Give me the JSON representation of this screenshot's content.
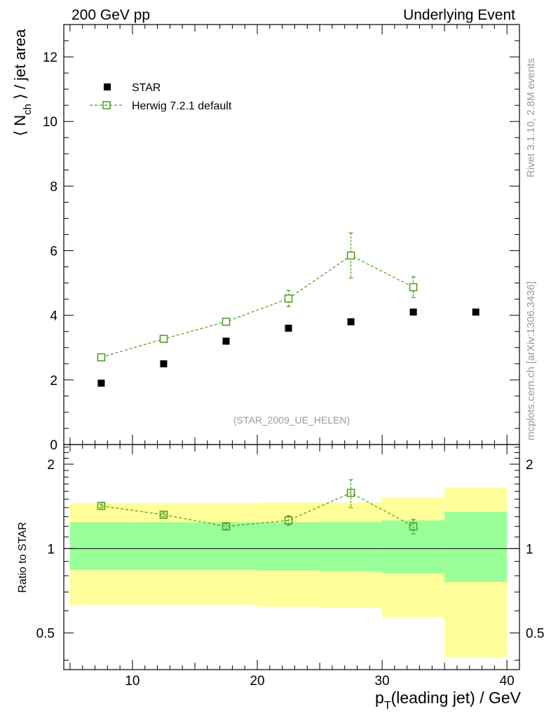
{
  "header": {
    "left": "200 GeV pp",
    "right": "Underlying Event"
  },
  "side_labels": {
    "rivet": "Rivet 3.1.10,  2.8M events",
    "mcplots": "mcplots.cern.ch [arXiv:1306.3436]"
  },
  "analysis_tag": "(STAR_2009_UE_HELEN)",
  "colors": {
    "data": "#000000",
    "mc": "#4a9a1a",
    "band_inner": "#99ff99",
    "band_outer": "#ffff99",
    "side_text": "#999999"
  },
  "chart_data": [
    {
      "type": "scatter",
      "panel": "main",
      "ylabel_parts": {
        "open": "⟨ N",
        "sub": "ch",
        "close": " ⟩ / jet area"
      },
      "xlim": [
        4.5,
        41
      ],
      "ylim": [
        0,
        13
      ],
      "yticks": [
        0,
        2,
        4,
        6,
        8,
        10,
        12
      ],
      "legend_position": "top-left",
      "series": [
        {
          "name": "STAR",
          "marker": "filled-square",
          "x": [
            7.5,
            12.5,
            17.5,
            22.5,
            27.5,
            32.5,
            37.5
          ],
          "y": [
            1.9,
            2.5,
            3.2,
            3.6,
            3.8,
            4.1,
            4.1
          ]
        },
        {
          "name": "Herwig 7.2.1 default",
          "marker": "open-square-dashed-line",
          "x": [
            7.5,
            12.5,
            17.5,
            22.5,
            27.5,
            32.5
          ],
          "y": [
            2.7,
            3.27,
            3.8,
            4.52,
            5.85,
            4.87
          ],
          "yerr": [
            0.03,
            0.04,
            0.08,
            0.25,
            0.7,
            0.32
          ]
        }
      ]
    },
    {
      "type": "line",
      "panel": "ratio",
      "ylabel": "Ratio to STAR",
      "xlabel_parts": {
        "p": "p",
        "sub": "T",
        "rest": "(leading jet) / GeV"
      },
      "xlim": [
        4.5,
        41
      ],
      "ylim": [
        0.37,
        2.35
      ],
      "log_y": true,
      "xticks": [
        10,
        20,
        30,
        40
      ],
      "yticks": [
        0.5,
        1,
        2
      ],
      "reference_line": 1,
      "bands": [
        {
          "x_lo": 5,
          "x_hi": 10,
          "inner": [
            0.84,
            1.24
          ],
          "outer": [
            0.63,
            1.45
          ]
        },
        {
          "x_lo": 10,
          "x_hi": 15,
          "inner": [
            0.84,
            1.24
          ],
          "outer": [
            0.63,
            1.45
          ]
        },
        {
          "x_lo": 15,
          "x_hi": 20,
          "inner": [
            0.84,
            1.24
          ],
          "outer": [
            0.63,
            1.45
          ]
        },
        {
          "x_lo": 20,
          "x_hi": 25,
          "inner": [
            0.835,
            1.24
          ],
          "outer": [
            0.62,
            1.46
          ]
        },
        {
          "x_lo": 25,
          "x_hi": 30,
          "inner": [
            0.83,
            1.245
          ],
          "outer": [
            0.615,
            1.46
          ]
        },
        {
          "x_lo": 30,
          "x_hi": 35,
          "inner": [
            0.815,
            1.26
          ],
          "outer": [
            0.57,
            1.52
          ]
        },
        {
          "x_lo": 35,
          "x_hi": 40,
          "inner": [
            0.76,
            1.35
          ],
          "outer": [
            0.41,
            1.65
          ]
        }
      ],
      "series": [
        {
          "name": "Herwig 7.2.1 default",
          "x": [
            7.5,
            12.5,
            17.5,
            22.5,
            27.5,
            32.5
          ],
          "y": [
            1.42,
            1.32,
            1.2,
            1.26,
            1.58,
            1.2
          ],
          "yerr": [
            0.02,
            0.02,
            0.03,
            0.05,
            0.18,
            0.07
          ]
        }
      ]
    }
  ]
}
